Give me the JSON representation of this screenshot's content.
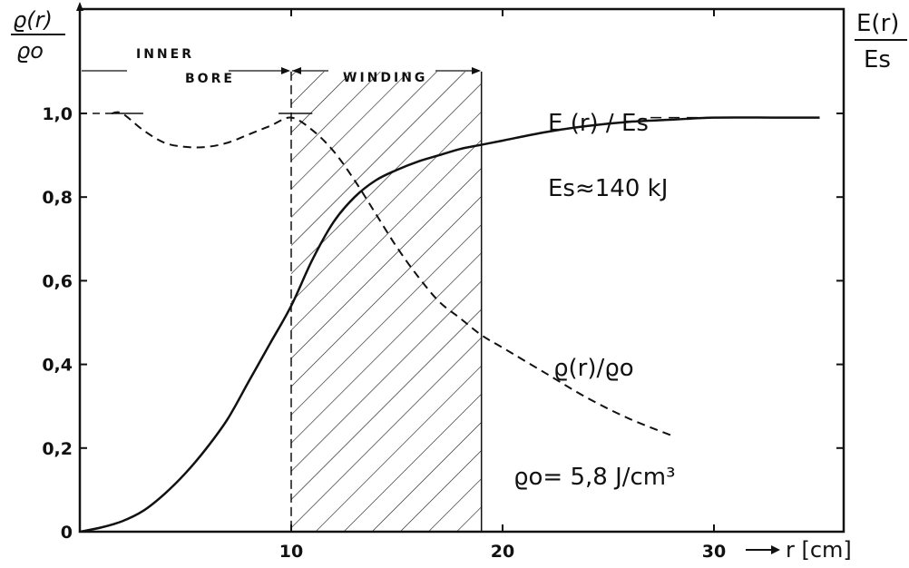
{
  "chart_data": {
    "type": "line",
    "title": "",
    "xlabel": "r [cm]",
    "ylabel_left": [
      "ϱ(r)",
      "ϱo"
    ],
    "ylabel_right": [
      "E(r)",
      "Es"
    ],
    "xlim": [
      0,
      35
    ],
    "ylim": [
      0,
      1.2
    ],
    "x_ticks": [
      {
        "value": 10,
        "label": "10"
      },
      {
        "value": 20,
        "label": "20"
      },
      {
        "value": 30,
        "label": "30"
      }
    ],
    "y_ticks": [
      {
        "value": 0,
        "label": "0"
      },
      {
        "value": 0.2,
        "label": "0,2"
      },
      {
        "value": 0.4,
        "label": "0,4"
      },
      {
        "value": 0.6,
        "label": "0,6"
      },
      {
        "value": 0.8,
        "label": "0,8"
      },
      {
        "value": 1.0,
        "label": "1,0"
      }
    ],
    "regions": [
      {
        "label": "INNER",
        "label2": "BORE",
        "x_start": 0,
        "x_end": 10
      },
      {
        "label": "WINDING",
        "x_start": 10,
        "x_end": 19,
        "hatched": true
      }
    ],
    "series": [
      {
        "name": "E (r) / Es",
        "style": "solid",
        "x": [
          0,
          1,
          2,
          3,
          4,
          5,
          6,
          7,
          8,
          9,
          10,
          11,
          12,
          13,
          14,
          15,
          16,
          17,
          18,
          19,
          20,
          22,
          24,
          26,
          28,
          30,
          33,
          35
        ],
        "y": [
          0,
          0.01,
          0.025,
          0.05,
          0.09,
          0.14,
          0.2,
          0.27,
          0.36,
          0.45,
          0.54,
          0.65,
          0.74,
          0.8,
          0.84,
          0.865,
          0.885,
          0.9,
          0.915,
          0.925,
          0.935,
          0.955,
          0.97,
          0.98,
          0.985,
          0.99,
          0.99,
          0.99
        ]
      },
      {
        "name": "ϱ(r)/ϱo",
        "style": "dashed",
        "x": [
          1.5,
          2,
          3,
          4,
          5,
          6,
          7,
          8,
          9,
          10,
          11,
          12,
          13,
          14,
          15,
          16,
          17,
          18,
          19,
          20,
          22,
          24,
          26,
          28
        ],
        "y": [
          1.0,
          1.0,
          0.96,
          0.93,
          0.92,
          0.92,
          0.93,
          0.95,
          0.97,
          0.99,
          0.96,
          0.91,
          0.84,
          0.76,
          0.68,
          0.61,
          0.55,
          0.51,
          0.47,
          0.44,
          0.38,
          0.32,
          0.27,
          0.23
        ]
      }
    ],
    "reference_lines": [
      {
        "y": 1.0,
        "x_start": 1.5,
        "x_end": 3,
        "style": "solid"
      },
      {
        "y": 0.99,
        "x_start": 27,
        "x_end": 35,
        "style": "dashed"
      }
    ],
    "annotations": {
      "e_label": "E (r) / Es",
      "es_value": "Es≈140 kJ",
      "rho_label": "ϱ(r)/ϱo",
      "rho0_value": "ϱo= 5,8 J/cm³"
    },
    "grid": false,
    "legend": "none"
  }
}
